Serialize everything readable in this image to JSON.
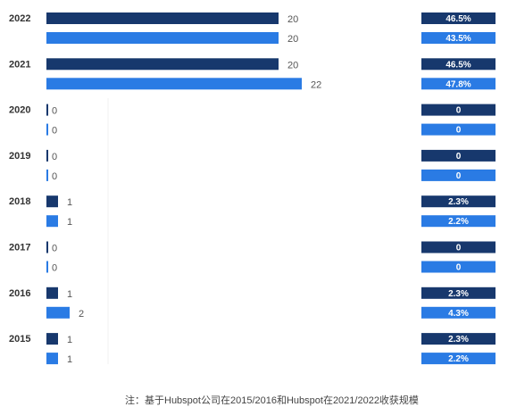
{
  "chart_data": {
    "type": "bar",
    "orientation": "horizontal",
    "categories": [
      "2022",
      "2021",
      "2020",
      "2019",
      "2018",
      "2017",
      "2016",
      "2015"
    ],
    "series": [
      {
        "values": [
          20,
          20,
          0,
          0,
          1,
          0,
          1,
          1
        ],
        "percent": [
          "46.5%",
          "46.5%",
          "0",
          "0",
          "2.3%",
          "0",
          "2.3%",
          "2.3%"
        ]
      },
      {
        "values": [
          20,
          22,
          0,
          0,
          1,
          0,
          2,
          1
        ],
        "percent": [
          "43.5%",
          "47.8%",
          "0",
          "0",
          "2.2%",
          "0",
          "4.3%",
          "2.2%"
        ]
      }
    ],
    "xlim": [
      0,
      22
    ],
    "grid": false,
    "colors": [
      "#17386d",
      "#2a7be4"
    ]
  },
  "footnote": "注：基于Hubspot公司在2015/2016和Hubspot在2021/2022收获规模"
}
